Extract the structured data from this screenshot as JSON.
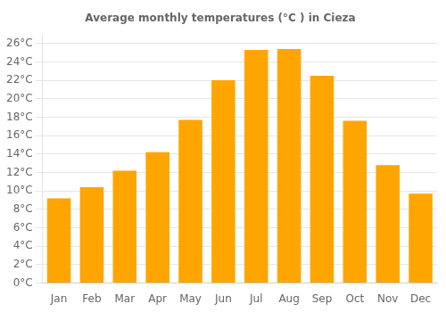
{
  "chart_data": {
    "type": "bar",
    "title": "Average monthly temperatures (°C ) in Cieza",
    "categories": [
      "Jan",
      "Feb",
      "Mar",
      "Apr",
      "May",
      "Jun",
      "Jul",
      "Aug",
      "Sep",
      "Oct",
      "Nov",
      "Dec"
    ],
    "values": [
      9.2,
      10.4,
      12.2,
      14.2,
      17.7,
      22.0,
      25.3,
      25.4,
      22.5,
      17.6,
      12.8,
      9.7
    ],
    "color": "#FFA500",
    "ylim": [
      0,
      27
    ],
    "yticks": [
      {
        "value": 0,
        "label": "0°C"
      },
      {
        "value": 2,
        "label": "2°C"
      },
      {
        "value": 4,
        "label": "4°C"
      },
      {
        "value": 6,
        "label": "6°C"
      },
      {
        "value": 8,
        "label": "8°C"
      },
      {
        "value": 10,
        "label": "10°C"
      },
      {
        "value": 12,
        "label": "12°C"
      },
      {
        "value": 14,
        "label": "14°C"
      },
      {
        "value": 16,
        "label": "16°C"
      },
      {
        "value": 18,
        "label": "18°C"
      },
      {
        "value": 20,
        "label": "20°C"
      },
      {
        "value": 22,
        "label": "22°C"
      },
      {
        "value": 24,
        "label": "24°C"
      },
      {
        "value": 26,
        "label": "26°C"
      }
    ],
    "grid": true
  }
}
